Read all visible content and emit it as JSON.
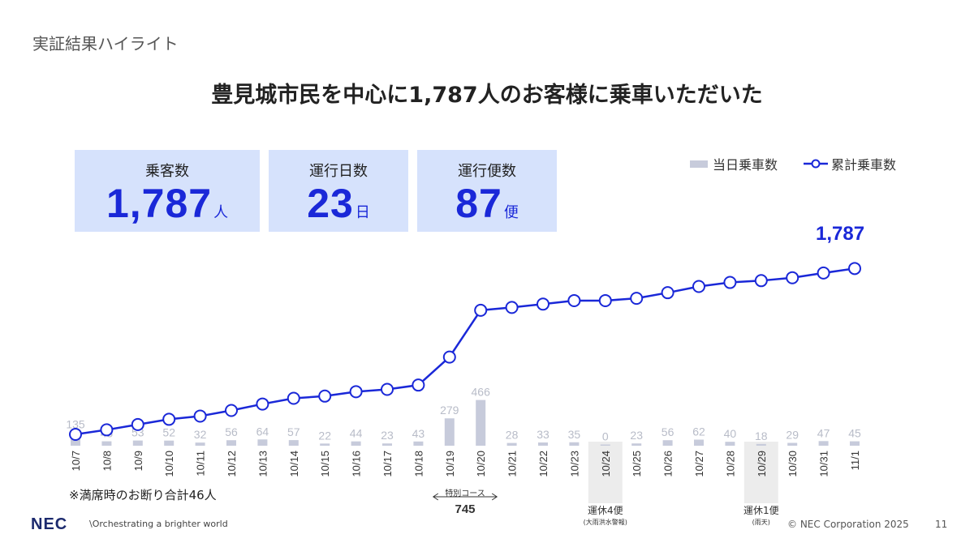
{
  "header": {
    "section_label": "実証結果ハイライト",
    "headline": "豊見城市民を中心に1,787人のお客様に乗車いただいた"
  },
  "kpis": [
    {
      "label": "乗客数",
      "value": "1,787",
      "unit": "人"
    },
    {
      "label": "運行日数",
      "value": "23",
      "unit": "日"
    },
    {
      "label": "運行便数",
      "value": "87",
      "unit": "便"
    }
  ],
  "legend": {
    "bar_label": "当日乗車数",
    "line_label": "累計乗車数"
  },
  "chart_data": {
    "type": "bar+line",
    "categories": [
      "10/7",
      "10/8",
      "10/9",
      "10/10",
      "10/11",
      "10/12",
      "10/13",
      "10/14",
      "10/15",
      "10/16",
      "10/17",
      "10/18",
      "10/19",
      "10/20",
      "10/21",
      "10/22",
      "10/23",
      "10/24",
      "10/25",
      "10/26",
      "10/27",
      "10/28",
      "10/29",
      "10/30",
      "10/31",
      "11/1"
    ],
    "series": [
      {
        "name": "当日乗車数",
        "type": "bar",
        "values": [
          135,
          45,
          53,
          52,
          32,
          56,
          64,
          57,
          22,
          44,
          23,
          43,
          279,
          466,
          28,
          33,
          35,
          0,
          23,
          56,
          62,
          40,
          18,
          29,
          47,
          45
        ]
      },
      {
        "name": "累計乗車数",
        "type": "line",
        "values": [
          135,
          180,
          233,
          285,
          317,
          373,
          437,
          494,
          516,
          560,
          583,
          626,
          905,
          1371,
          1399,
          1432,
          1467,
          1467,
          1490,
          1546,
          1608,
          1648,
          1666,
          1695,
          1742,
          1787
        ]
      }
    ],
    "final_label": "1,787",
    "shaded_days": [
      "10/24",
      "10/29"
    ],
    "colors": {
      "bar": "#c7cbdb",
      "line": "#1a28d8",
      "bar_label": "#b8bcc8",
      "shade": "#ececec"
    }
  },
  "annotations": {
    "special_course": {
      "label": "特別コース",
      "value": "745"
    },
    "closure_1024": {
      "label": "運休4便",
      "note": "(大雨洪水警報)"
    },
    "closure_1029": {
      "label": "運休1便",
      "note": "(雨天)"
    }
  },
  "footnote": "※満席時のお断り合計46人",
  "footer": {
    "logo": "NEC",
    "tagline": "\\Orchestrating a brighter world",
    "copyright": "© NEC Corporation 2025",
    "page": "11"
  }
}
